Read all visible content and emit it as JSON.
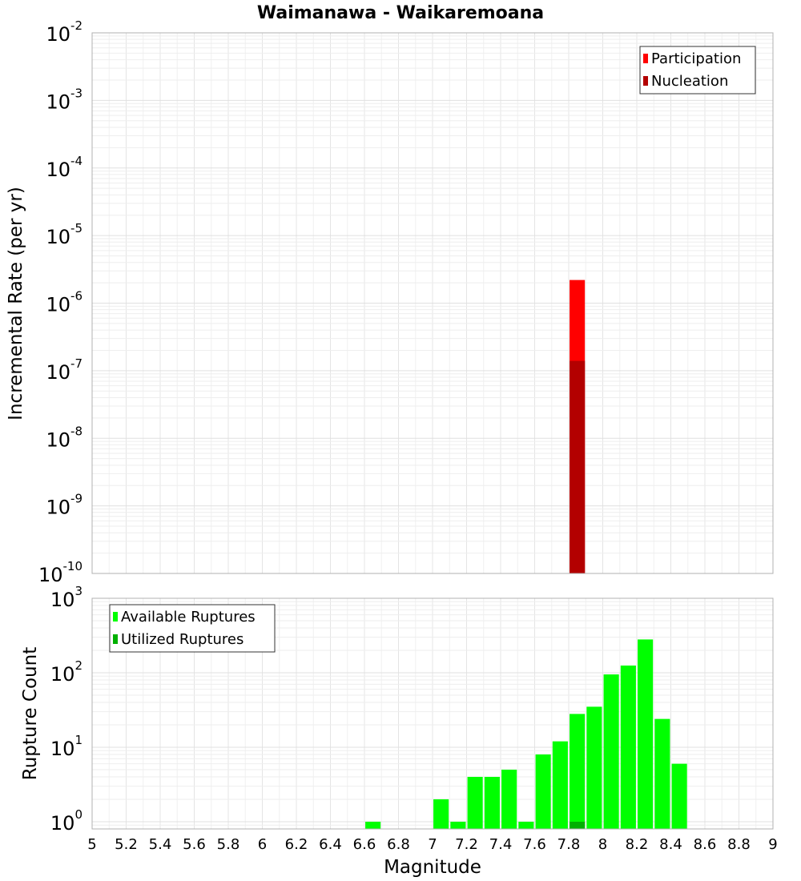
{
  "chart_data": [
    {
      "id": "rate",
      "type": "bar",
      "title": "Waimanawa - Waikaremoana",
      "ylabel": "Incremental Rate (per yr)",
      "xlim": [
        5,
        9
      ],
      "ylim": [
        1e-10,
        0.01
      ],
      "yscale": "log",
      "yticks": [
        {
          "base": "10",
          "exp": "-10"
        },
        {
          "base": "10",
          "exp": "-9"
        },
        {
          "base": "10",
          "exp": "-8"
        },
        {
          "base": "10",
          "exp": "-7"
        },
        {
          "base": "10",
          "exp": "-6"
        },
        {
          "base": "10",
          "exp": "-5"
        },
        {
          "base": "10",
          "exp": "-4"
        },
        {
          "base": "10",
          "exp": "-3"
        },
        {
          "base": "10",
          "exp": "-2"
        }
      ],
      "grid": true,
      "legend_position": "top-right",
      "series": [
        {
          "name": "Participation",
          "color": "#ff0000",
          "x": [
            7.85
          ],
          "values": [
            2.2e-06
          ]
        },
        {
          "name": "Nucleation",
          "color": "#b30000",
          "x": [
            7.85
          ],
          "values": [
            1.4e-07
          ]
        }
      ]
    },
    {
      "id": "count",
      "type": "bar",
      "ylabel": "Rupture Count",
      "xlabel": "Magnitude",
      "xlim": [
        5,
        9
      ],
      "ylim": [
        0.8,
        1000
      ],
      "yscale": "log",
      "yticks": [
        {
          "base": "10",
          "exp": "0"
        },
        {
          "base": "10",
          "exp": "1"
        },
        {
          "base": "10",
          "exp": "2"
        },
        {
          "base": "10",
          "exp": "3"
        }
      ],
      "xticks": [
        "5",
        "5.2",
        "5.4",
        "5.6",
        "5.8",
        "6",
        "6.2",
        "6.4",
        "6.6",
        "6.8",
        "7",
        "7.2",
        "7.4",
        "7.6",
        "7.8",
        "8",
        "8.2",
        "8.4",
        "8.6",
        "8.8",
        "9"
      ],
      "grid": true,
      "legend_position": "top-left",
      "series": [
        {
          "name": "Available Ruptures",
          "color": "#00ff00",
          "x": [
            6.65,
            7.05,
            7.15,
            7.25,
            7.35,
            7.45,
            7.55,
            7.65,
            7.75,
            7.85,
            7.95,
            8.05,
            8.15,
            8.25,
            8.35,
            8.45
          ],
          "values": [
            1,
            2,
            1,
            4,
            4,
            5,
            1,
            8,
            12,
            28,
            35,
            95,
            125,
            280,
            24,
            6
          ]
        },
        {
          "name": "Utilized Ruptures",
          "color": "#00b000",
          "x": [
            7.85
          ],
          "values": [
            1
          ]
        }
      ]
    }
  ]
}
